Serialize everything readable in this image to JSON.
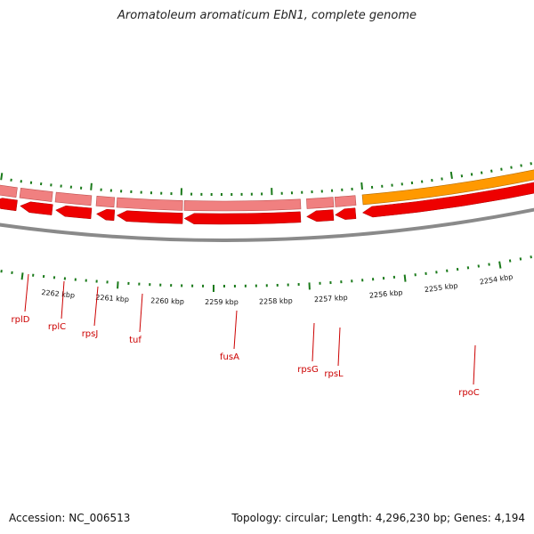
{
  "title": "Aromatoleum aromaticum EbN1, complete genome",
  "footer": {
    "accession": "Accession: NC_006513",
    "topology": "Topology: circular; Length: 4,296,230 bp; Genes: 4,194"
  },
  "scale_labels": [
    "2262 kbp",
    "2261 kbp",
    "2260 kbp",
    "2259 kbp",
    "2258 kbp",
    "2257 kbp",
    "2256 kbp",
    "2255 kbp",
    "2254 kbp"
  ],
  "genes": [
    {
      "name": "rplD"
    },
    {
      "name": "rplC"
    },
    {
      "name": "rpsJ"
    },
    {
      "name": "tuf"
    },
    {
      "name": "fusA"
    },
    {
      "name": "rpsG"
    },
    {
      "name": "rpsL"
    },
    {
      "name": "rpoC"
    }
  ],
  "colors": {
    "backbone": "#8a8a8a",
    "cds": "#ee0000",
    "cds_light": "#f08080",
    "rpoC": "#ff9900",
    "tick": "#1a7a1a",
    "label": "#cc0000"
  }
}
